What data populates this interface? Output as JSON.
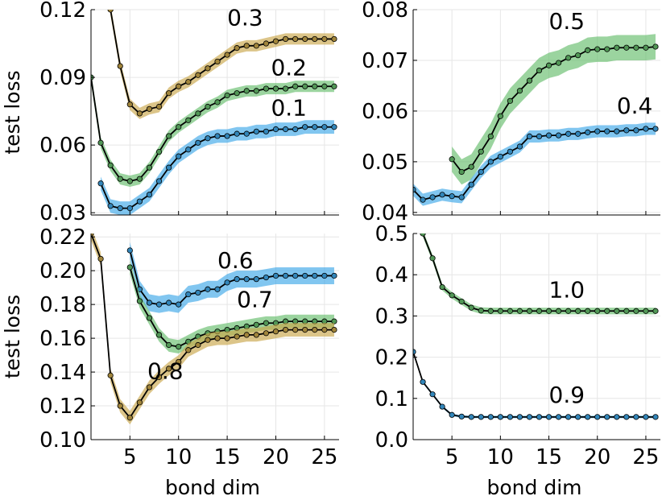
{
  "chart_data": [
    {
      "type": "line",
      "panel": "top-left",
      "xlabel": "",
      "ylabel": "test loss",
      "xlim": [
        1,
        26.5
      ],
      "ylim": [
        0.029,
        0.12
      ],
      "x_ticks": [
        5,
        10,
        15,
        20,
        25
      ],
      "x_tick_labels": [
        "",
        "",
        "",
        "",
        ""
      ],
      "y_ticks": [
        0.03,
        0.06,
        0.09,
        0.12
      ],
      "y_tick_labels": [
        "0.03",
        "0.06",
        "0.09",
        "0.12"
      ],
      "grid": true,
      "series": [
        {
          "name": "0.3",
          "color": "#c9a64a",
          "x": [
            3,
            4,
            5,
            6,
            7,
            8,
            9,
            10,
            11,
            12,
            13,
            14,
            15,
            16,
            17,
            18,
            19,
            20,
            21,
            22,
            23,
            24,
            25,
            26
          ],
          "y": [
            0.12,
            0.095,
            0.078,
            0.074,
            0.076,
            0.077,
            0.083,
            0.086,
            0.088,
            0.091,
            0.094,
            0.097,
            0.1,
            0.103,
            0.104,
            0.104,
            0.105,
            0.106,
            0.107,
            0.107,
            0.107,
            0.107,
            0.107,
            0.107
          ],
          "band": 0.0025,
          "label_at": [
            15,
            0.113
          ]
        },
        {
          "name": "0.2",
          "color": "#65bd6c",
          "x": [
            1,
            2,
            3,
            4,
            5,
            6,
            7,
            8,
            9,
            10,
            11,
            12,
            13,
            14,
            15,
            16,
            17,
            18,
            19,
            20,
            21,
            22,
            23,
            24,
            25,
            26
          ],
          "y": [
            0.09,
            0.061,
            0.051,
            0.045,
            0.044,
            0.045,
            0.05,
            0.057,
            0.064,
            0.068,
            0.071,
            0.074,
            0.077,
            0.079,
            0.082,
            0.083,
            0.084,
            0.084,
            0.085,
            0.085,
            0.085,
            0.086,
            0.086,
            0.086,
            0.086,
            0.086
          ],
          "band": 0.0025,
          "label_at": [
            19.5,
            0.091
          ]
        },
        {
          "name": "0.1",
          "color": "#3ea8e8",
          "x": [
            2,
            3,
            4,
            5,
            6,
            7,
            8,
            9,
            10,
            11,
            12,
            13,
            14,
            15,
            16,
            17,
            18,
            19,
            20,
            21,
            22,
            23,
            24,
            25,
            26
          ],
          "y": [
            0.043,
            0.033,
            0.032,
            0.032,
            0.035,
            0.038,
            0.044,
            0.05,
            0.055,
            0.058,
            0.061,
            0.063,
            0.064,
            0.064,
            0.065,
            0.065,
            0.066,
            0.066,
            0.067,
            0.067,
            0.067,
            0.068,
            0.068,
            0.068,
            0.068
          ],
          "band": 0.003,
          "label_at": [
            19.5,
            0.073
          ]
        }
      ]
    },
    {
      "type": "line",
      "panel": "top-right",
      "xlabel": "",
      "ylabel": "",
      "xlim": [
        1,
        26.5
      ],
      "ylim": [
        0.0395,
        0.08
      ],
      "x_ticks": [
        5,
        10,
        15,
        20,
        25
      ],
      "x_tick_labels": [
        "",
        "",
        "",
        "",
        ""
      ],
      "y_ticks": [
        0.04,
        0.05,
        0.06,
        0.07,
        0.08
      ],
      "y_tick_labels": [
        "0.04",
        "0.05",
        "0.06",
        "0.07",
        "0.08"
      ],
      "grid": true,
      "series": [
        {
          "name": "0.5",
          "color": "#65bd6c",
          "x": [
            5,
            6,
            7,
            8,
            9,
            10,
            11,
            12,
            13,
            14,
            15,
            16,
            17,
            18,
            19,
            20,
            21,
            22,
            23,
            24,
            25,
            26
          ],
          "y": [
            0.0505,
            0.048,
            0.049,
            0.052,
            0.055,
            0.059,
            0.062,
            0.064,
            0.066,
            0.068,
            0.069,
            0.0695,
            0.0705,
            0.071,
            0.072,
            0.0722,
            0.0722,
            0.0725,
            0.0725,
            0.0725,
            0.0725,
            0.0727
          ],
          "band": 0.0025,
          "label_at": [
            15,
            0.0762
          ]
        },
        {
          "name": "0.4",
          "color": "#3ea8e8",
          "x": [
            1,
            2,
            3,
            4,
            5,
            6,
            7,
            8,
            9,
            10,
            11,
            12,
            13,
            14,
            15,
            16,
            17,
            18,
            19,
            20,
            21,
            22,
            23,
            24,
            25,
            26
          ],
          "y": [
            0.0445,
            0.0425,
            0.043,
            0.0435,
            0.0432,
            0.043,
            0.0455,
            0.048,
            0.05,
            0.051,
            0.052,
            0.053,
            0.055,
            0.055,
            0.0552,
            0.0552,
            0.0555,
            0.0555,
            0.0558,
            0.056,
            0.056,
            0.056,
            0.0562,
            0.0562,
            0.0565,
            0.0565
          ],
          "band": 0.0012,
          "label_at": [
            22,
            0.0595
          ]
        }
      ]
    },
    {
      "type": "line",
      "panel": "bottom-left",
      "xlabel": "bond dim",
      "ylabel": "test loss",
      "xlim": [
        1,
        26.5
      ],
      "ylim": [
        0.1,
        0.222
      ],
      "x_ticks": [
        5,
        10,
        15,
        20,
        25
      ],
      "x_tick_labels": [
        "5",
        "10",
        "15",
        "20",
        "25"
      ],
      "y_ticks": [
        0.1,
        0.12,
        0.14,
        0.16,
        0.18,
        0.2,
        0.22
      ],
      "y_tick_labels": [
        "0.10",
        "0.12",
        "0.14",
        "0.16",
        "0.18",
        "0.20",
        "0.22"
      ],
      "grid": true,
      "series": [
        {
          "name": "0.6",
          "color": "#3ea8e8",
          "x": [
            5,
            6,
            7,
            8,
            9,
            10,
            11,
            12,
            13,
            14,
            15,
            16,
            17,
            18,
            19,
            20,
            21,
            22,
            23,
            24,
            25,
            26
          ],
          "y": [
            0.212,
            0.189,
            0.181,
            0.18,
            0.181,
            0.18,
            0.186,
            0.187,
            0.189,
            0.189,
            0.193,
            0.195,
            0.195,
            0.195,
            0.196,
            0.197,
            0.197,
            0.197,
            0.197,
            0.197,
            0.197,
            0.197
          ],
          "band": 0.005,
          "label_at": [
            14,
            0.2015
          ]
        },
        {
          "name": "0.7",
          "color": "#65bd6c",
          "x": [
            5,
            6,
            7,
            8,
            9,
            10,
            11,
            12,
            13,
            14,
            15,
            16,
            17,
            18,
            19,
            20,
            21,
            22,
            23,
            24,
            25,
            26
          ],
          "y": [
            0.202,
            0.182,
            0.172,
            0.162,
            0.156,
            0.155,
            0.158,
            0.161,
            0.163,
            0.164,
            0.165,
            0.166,
            0.167,
            0.168,
            0.169,
            0.169,
            0.17,
            0.17,
            0.17,
            0.17,
            0.17,
            0.17
          ],
          "band": 0.004,
          "label_at": [
            16,
            0.1785
          ]
        },
        {
          "name": "0.8",
          "color": "#c9a64a",
          "x": [
            1,
            2,
            3,
            4,
            5,
            6,
            7,
            8,
            9,
            10,
            11,
            12,
            13,
            14,
            15,
            16,
            17,
            18,
            19,
            20,
            21,
            22,
            23,
            24,
            25,
            26
          ],
          "y": [
            0.222,
            0.207,
            0.138,
            0.12,
            0.113,
            0.122,
            0.131,
            0.137,
            0.142,
            0.146,
            0.153,
            0.156,
            0.159,
            0.16,
            0.16,
            0.161,
            0.162,
            0.162,
            0.163,
            0.164,
            0.165,
            0.165,
            0.165,
            0.165,
            0.165,
            0.165
          ],
          "band": 0.004,
          "label_at": [
            6.8,
            0.136
          ]
        }
      ]
    },
    {
      "type": "line",
      "panel": "bottom-right",
      "xlabel": "bond dim",
      "ylabel": "",
      "xlim": [
        1,
        26.5
      ],
      "ylim": [
        0,
        0.5
      ],
      "x_ticks": [
        5,
        10,
        15,
        20,
        25
      ],
      "x_tick_labels": [
        "5",
        "10",
        "15",
        "20",
        "25"
      ],
      "y_ticks": [
        0.0,
        0.1,
        0.2,
        0.3,
        0.4,
        0.5
      ],
      "y_tick_labels": [
        "0.0",
        "0.1",
        "0.2",
        "0.3",
        "0.4",
        "0.5"
      ],
      "grid": true,
      "series": [
        {
          "name": "1.0",
          "color": "#65bd6c",
          "x": [
            2,
            3,
            4,
            5,
            6,
            7,
            8,
            9,
            10,
            11,
            12,
            13,
            14,
            15,
            16,
            17,
            18,
            19,
            20,
            21,
            22,
            23,
            24,
            25,
            26
          ],
          "y": [
            0.5,
            0.44,
            0.37,
            0.35,
            0.335,
            0.32,
            0.313,
            0.312,
            0.312,
            0.312,
            0.312,
            0.312,
            0.312,
            0.312,
            0.312,
            0.312,
            0.312,
            0.312,
            0.312,
            0.312,
            0.312,
            0.312,
            0.312,
            0.312,
            0.312
          ],
          "band": 0.008,
          "label_at": [
            15,
            0.345
          ]
        },
        {
          "name": "0.9",
          "color": "#3ea8e8",
          "x": [
            1,
            2,
            3,
            4,
            5,
            6,
            7,
            8,
            9,
            10,
            11,
            12,
            13,
            14,
            15,
            16,
            17,
            18,
            19,
            20,
            21,
            22,
            23,
            24,
            25,
            26
          ],
          "y": [
            0.213,
            0.14,
            0.11,
            0.08,
            0.06,
            0.056,
            0.055,
            0.055,
            0.055,
            0.055,
            0.055,
            0.055,
            0.055,
            0.055,
            0.055,
            0.055,
            0.055,
            0.055,
            0.055,
            0.055,
            0.055,
            0.055,
            0.055,
            0.055,
            0.055,
            0.055
          ],
          "band": 0.003,
          "label_at": [
            15,
            0.09
          ]
        }
      ]
    }
  ]
}
